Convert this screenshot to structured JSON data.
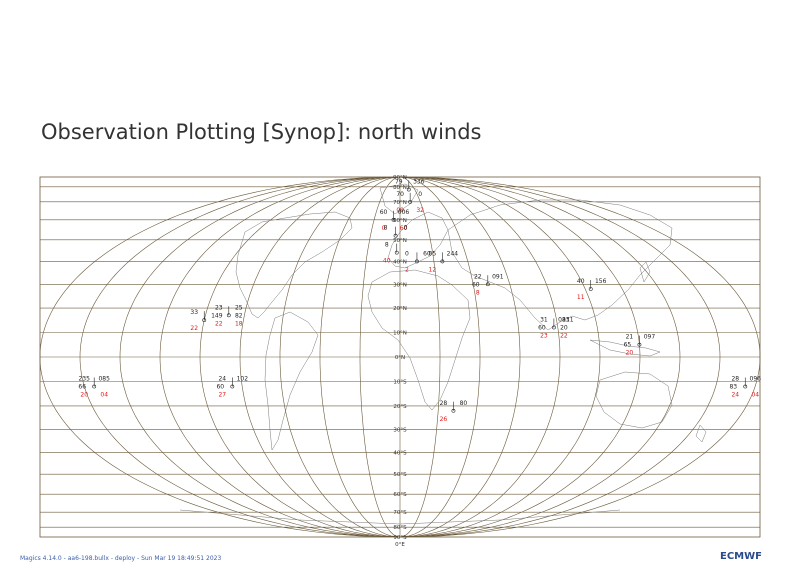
{
  "title": "Observation Plotting [Synop]: north winds",
  "footer": "Magics 4.14.0 - aa6-198.bullx - deploy - Sun Mar 19 18:49:51 2023",
  "logo": "ECMWF",
  "colors": {
    "grid": "#6b5a3a",
    "coast": "#7a7a7a",
    "black": "#222222",
    "red": "#e01818"
  },
  "latitude_labels": [
    "90°N",
    "80°N",
    "70°N",
    "60°N",
    "50°N",
    "40°N",
    "30°N",
    "20°N",
    "10°N",
    "0°N",
    "10°S",
    "20°S",
    "30°S",
    "40°S",
    "50°S",
    "60°S",
    "70°S",
    "80°S",
    "90°S"
  ],
  "longitude_label": "0°E",
  "observations": [
    {
      "lon": 12,
      "lat": 78,
      "black": [
        "79",
        "336"
      ],
      "red": []
    },
    {
      "lon": 10,
      "lat": 70,
      "black": [
        "70",
        "0"
      ],
      "red": [
        "09",
        "32"
      ]
    },
    {
      "lon": -5,
      "lat": 60,
      "black": [
        "60",
        "006"
      ],
      "red": [
        "0",
        "60"
      ]
    },
    {
      "lon": -3,
      "lat": 52,
      "black": [
        "8",
        "0"
      ],
      "red": []
    },
    {
      "lon": -2,
      "lat": 44,
      "black": [
        "8"
      ],
      "red": [
        "40"
      ]
    },
    {
      "lon": 10,
      "lat": 40,
      "black": [
        "0",
        "60"
      ],
      "red": [
        "2"
      ]
    },
    {
      "lon": 25,
      "lat": 40,
      "black": [
        "05",
        "244"
      ],
      "red": [
        "12"
      ]
    },
    {
      "lon": 48,
      "lat": 30,
      "black": [
        "22",
        "091",
        "60"
      ],
      "red": [
        "8"
      ]
    },
    {
      "lon": 103,
      "lat": 28,
      "black": [
        "40",
        "156"
      ],
      "red": [
        "11"
      ]
    },
    {
      "lon": 78,
      "lat": 12,
      "black": [
        "31",
        "083",
        "60",
        "20",
        "111"
      ],
      "red": [
        "23",
        "22"
      ]
    },
    {
      "lon": 120,
      "lat": 5,
      "black": [
        "21",
        "097",
        "65"
      ],
      "red": [
        "20"
      ]
    },
    {
      "lon": -88,
      "lat": 17,
      "black": [
        "23",
        "25",
        "149",
        "82"
      ],
      "red": [
        "22",
        "18"
      ]
    },
    {
      "lon": -100,
      "lat": 15,
      "black": [
        "33"
      ],
      "red": [
        "22"
      ]
    },
    {
      "lon": -85,
      "lat": -12,
      "black": [
        "24",
        "102",
        "60"
      ],
      "red": [
        "27"
      ]
    },
    {
      "lon": -155,
      "lat": -12,
      "black": [
        "235",
        "085",
        "66"
      ],
      "red": [
        "20",
        "04"
      ]
    },
    {
      "lon": 28,
      "lat": -22,
      "black": [
        "28",
        "80"
      ],
      "red": [
        "26"
      ]
    },
    {
      "lon": 175,
      "lat": -12,
      "black": [
        "28",
        "096",
        "83"
      ],
      "red": [
        "24",
        "04"
      ]
    }
  ]
}
